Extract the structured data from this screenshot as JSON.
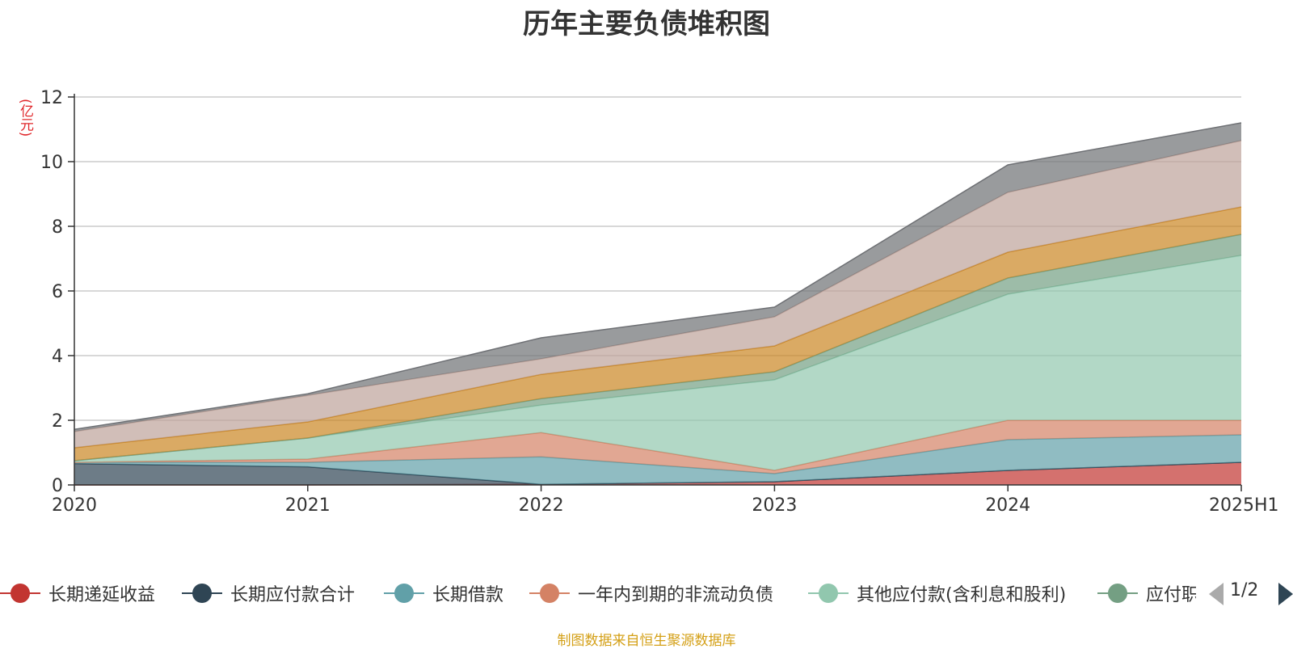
{
  "title": "历年主要负债堆积图",
  "unit_label": "(亿元)",
  "source_note": "制图数据来自恒生聚源数据库",
  "legend_pager": "1/2",
  "chart_data": {
    "type": "area",
    "stacked": true,
    "title": "历年主要负债堆积图",
    "ylabel": "(亿元)",
    "x": [
      "2020",
      "2021",
      "2022",
      "2023",
      "2024",
      "2025H1"
    ],
    "ylim": [
      0,
      12
    ],
    "yticks": [
      0,
      2,
      4,
      6,
      8,
      10,
      12
    ],
    "grid": true,
    "legend_position": "bottom",
    "series": [
      {
        "name": "长期递延收益",
        "color": "#c23531",
        "values": [
          0,
          0,
          0.02,
          0.1,
          0.45,
          0.7
        ]
      },
      {
        "name": "长期应付款合计",
        "color": "#2f4554",
        "values": [
          0.66,
          0.56,
          0,
          0,
          0,
          0
        ]
      },
      {
        "name": "长期借款",
        "color": "#61a0a8",
        "values": [
          0.04,
          0.14,
          0.85,
          0.25,
          0.95,
          0.85
        ]
      },
      {
        "name": "一年内到期的非流动负债",
        "color": "#d48265",
        "values": [
          0,
          0.1,
          0.75,
          0.1,
          0.6,
          0.45
        ]
      },
      {
        "name": "其他应付款(含利息和股利)",
        "color": "#91c7ae",
        "values": [
          0.05,
          0.65,
          0.85,
          2.8,
          3.9,
          5.1
        ]
      },
      {
        "name": "",
        "color": "#749f83",
        "values": [
          0,
          0,
          0.2,
          0.25,
          0.5,
          0.65
        ]
      },
      {
        "name": "",
        "color": "#ca8622",
        "values": [
          0.4,
          0.5,
          0.75,
          0.8,
          0.8,
          0.85
        ]
      },
      {
        "name": "",
        "color": "#bda29a",
        "values": [
          0.5,
          0.82,
          0.48,
          0.9,
          1.85,
          2.05
        ]
      },
      {
        "name": "",
        "color": "#6e7074",
        "values": [
          0.07,
          0.05,
          0.65,
          0.3,
          0.85,
          0.55
        ]
      }
    ]
  },
  "legend": {
    "items": [
      {
        "label": "长期递延收益",
        "color": "#c23531"
      },
      {
        "label": "长期应付款合计",
        "color": "#2f4554"
      },
      {
        "label": "长期借款",
        "color": "#61a0a8"
      },
      {
        "label": "一年内到期的非流动负债",
        "color": "#d48265"
      },
      {
        "label": "其他应付款(含利息和股利)",
        "color": "#91c7ae"
      },
      {
        "label": "应付职",
        "color": "#749f83"
      }
    ]
  }
}
